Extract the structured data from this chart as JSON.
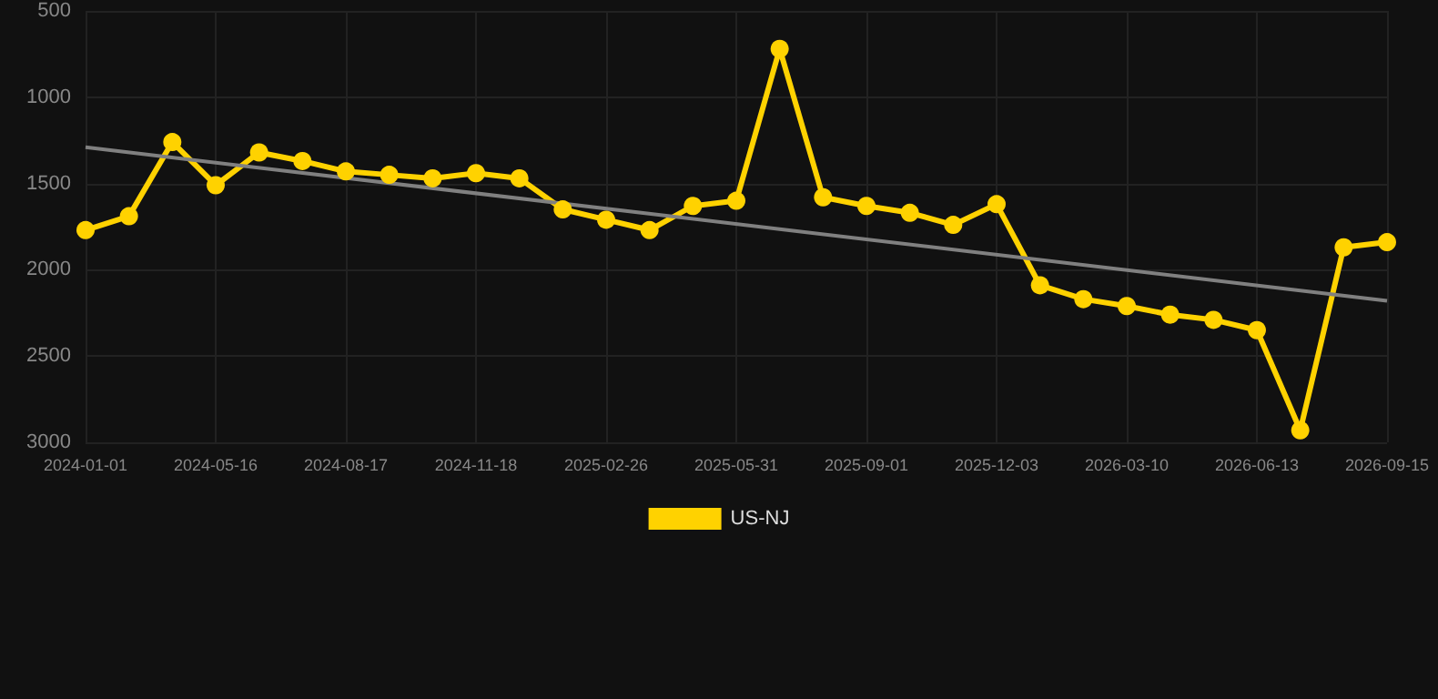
{
  "chart_data": {
    "type": "line",
    "categories": [
      "2024-01-01",
      null,
      null,
      "2024-05-16",
      null,
      null,
      "2024-08-17",
      null,
      null,
      "2024-11-18",
      null,
      null,
      "2025-02-26",
      null,
      null,
      "2025-05-31",
      null,
      null,
      "2025-09-01",
      null,
      null,
      "2025-12-03",
      null,
      null,
      "2026-03-10",
      null,
      null,
      "2026-06-13",
      null,
      null,
      "2026-09-15"
    ],
    "series": [
      {
        "name": "US-NJ",
        "color": "#ffd200",
        "marker": "circle",
        "values": [
          1770,
          1690,
          1260,
          1510,
          1320,
          1370,
          1430,
          1450,
          1470,
          1440,
          1470,
          1650,
          1710,
          1770,
          1630,
          1600,
          720,
          1580,
          1630,
          1670,
          1740,
          1620,
          2090,
          2170,
          2210,
          2260,
          2290,
          2350,
          2930,
          1870,
          1840
        ]
      },
      {
        "color": "#808080",
        "marker": "none",
        "values": [
          1290,
          null,
          null,
          null,
          null,
          null,
          null,
          null,
          null,
          null,
          null,
          null,
          null,
          null,
          null,
          null,
          null,
          null,
          null,
          null,
          null,
          null,
          null,
          null,
          null,
          null,
          null,
          null,
          null,
          null,
          2180
        ]
      }
    ],
    "ylim": [
      3000,
      500
    ],
    "yticks": [
      500,
      1000,
      1500,
      2000,
      2500,
      3000
    ],
    "grid": true,
    "legend": "bottom",
    "line_style": "solid"
  }
}
